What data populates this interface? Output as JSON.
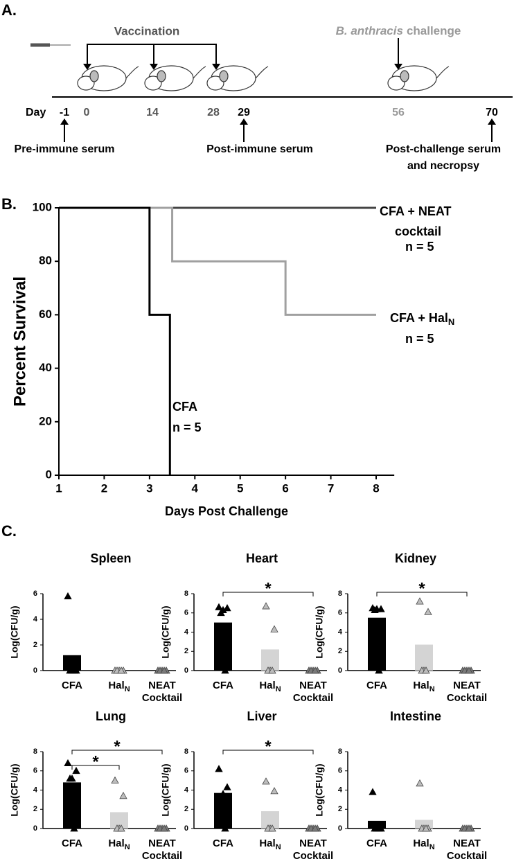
{
  "panel_labels": {
    "a": "A.",
    "b": "B.",
    "c": "C."
  },
  "timeline": {
    "vaccination": "Vaccination",
    "challenge_italic": "B. anthracis",
    "challenge": "challenge",
    "day_label": "Day",
    "days": [
      -1,
      0,
      14,
      28,
      29,
      56,
      70
    ],
    "annotations": [
      "Pre-immune serum",
      "Post-immune serum",
      "Post-challenge serum",
      "and necropsy"
    ]
  },
  "chart_data": [
    {
      "type": "step",
      "ylabel": "Percent Survival",
      "xlabel": "Days Post Challenge",
      "xlim": [
        1,
        8.4
      ],
      "ylim": [
        0,
        100
      ],
      "xticks": [
        1,
        2,
        3,
        4,
        5,
        6,
        7,
        8
      ],
      "yticks": [
        0,
        20,
        40,
        60,
        80,
        100
      ],
      "series": [
        {
          "name": "CFA + NEAT",
          "name_line2": "cocktail",
          "n_label": "n = 5",
          "color": "#444444",
          "x": [
            1,
            8
          ],
          "values": [
            100,
            100
          ]
        },
        {
          "name": "CFA + Hal",
          "name_sub": "N",
          "n_label": "n = 5",
          "color": "#a0a0a0",
          "x": [
            1,
            3.5,
            3.5,
            6,
            6,
            8
          ],
          "values": [
            100,
            100,
            80,
            80,
            60,
            60
          ]
        },
        {
          "name": "CFA",
          "n_label": "n = 5",
          "color": "#000000",
          "x": [
            1,
            3,
            3,
            3.45,
            3.45
          ],
          "values": [
            100,
            100,
            60,
            60,
            0
          ]
        }
      ]
    },
    {
      "type": "bar",
      "title": "Spleen",
      "ylabel": "Log(CFU/g)",
      "ylim": [
        0,
        6
      ],
      "yticks": [
        0,
        2,
        4,
        6
      ],
      "categories": [
        {
          "label": "CFA"
        },
        {
          "label": "Hal",
          "sub": "N"
        },
        {
          "label": "NEAT",
          "line2": "Cocktail"
        }
      ],
      "values": [
        1.2,
        0,
        0
      ],
      "points": [
        [
          5.8,
          0,
          0,
          0,
          0
        ],
        [
          0,
          0,
          0,
          0,
          0
        ],
        [
          0,
          0,
          0,
          0,
          0
        ]
      ],
      "bar_colors": [
        "#000000",
        "#d4d4d4",
        "#888888"
      ],
      "point_colors": [
        "#000000",
        "#bdbdbd",
        "#7a7a7a"
      ],
      "significance": []
    },
    {
      "type": "bar",
      "title": "Heart",
      "ylabel": "Log(CFU/g)",
      "ylim": [
        0,
        8
      ],
      "yticks": [
        0,
        2,
        4,
        6,
        8
      ],
      "categories": [
        {
          "label": "CFA"
        },
        {
          "label": "Hal",
          "sub": "N"
        },
        {
          "label": "NEAT",
          "line2": "Cocktail"
        }
      ],
      "values": [
        5.0,
        2.2,
        0
      ],
      "points": [
        [
          6.6,
          6.5,
          6.3,
          6.0,
          0
        ],
        [
          6.7,
          4.3,
          0,
          0,
          0
        ],
        [
          0,
          0,
          0,
          0,
          0
        ]
      ],
      "bar_colors": [
        "#000000",
        "#d4d4d4",
        "#888888"
      ],
      "point_colors": [
        "#000000",
        "#bdbdbd",
        "#7a7a7a"
      ],
      "significance": [
        {
          "from": 0,
          "to": 2,
          "label": "*"
        }
      ]
    },
    {
      "type": "bar",
      "title": "Kidney",
      "ylabel": "Log(CFU/g)",
      "ylim": [
        0,
        8
      ],
      "yticks": [
        0,
        2,
        4,
        6,
        8
      ],
      "categories": [
        {
          "label": "CFA"
        },
        {
          "label": "Hal",
          "sub": "N"
        },
        {
          "label": "NEAT",
          "line2": "Cocktail"
        }
      ],
      "values": [
        5.5,
        2.7,
        0
      ],
      "points": [
        [
          6.5,
          6.4,
          6.4,
          6.3,
          0
        ],
        [
          7.2,
          6.1,
          0,
          0,
          0
        ],
        [
          0,
          0,
          0,
          0,
          0
        ]
      ],
      "bar_colors": [
        "#000000",
        "#d4d4d4",
        "#888888"
      ],
      "point_colors": [
        "#000000",
        "#bdbdbd",
        "#7a7a7a"
      ],
      "significance": [
        {
          "from": 0,
          "to": 2,
          "label": "*"
        }
      ]
    },
    {
      "type": "bar",
      "title": "Lung",
      "ylabel": "Log(CFU/g)",
      "ylim": [
        0,
        8
      ],
      "yticks": [
        0,
        2,
        4,
        6,
        8
      ],
      "categories": [
        {
          "label": "CFA"
        },
        {
          "label": "Hal",
          "sub": "N"
        },
        {
          "label": "NEAT",
          "line2": "Cocktail"
        }
      ],
      "values": [
        4.8,
        1.7,
        0
      ],
      "points": [
        [
          6.8,
          6.0,
          5.2,
          5.2,
          0
        ],
        [
          5.0,
          3.4,
          0,
          0,
          0
        ],
        [
          0,
          0,
          0,
          0,
          0
        ]
      ],
      "bar_colors": [
        "#000000",
        "#d4d4d4",
        "#888888"
      ],
      "point_colors": [
        "#000000",
        "#bdbdbd",
        "#7a7a7a"
      ],
      "significance": [
        {
          "from": 0,
          "to": 1,
          "label": "*"
        },
        {
          "from": 0,
          "to": 2,
          "label": "*"
        }
      ]
    },
    {
      "type": "bar",
      "title": "Liver",
      "ylabel": "Log(CFU/g)",
      "ylim": [
        0,
        8
      ],
      "yticks": [
        0,
        2,
        4,
        6,
        8
      ],
      "categories": [
        {
          "label": "CFA"
        },
        {
          "label": "Hal",
          "sub": "N"
        },
        {
          "label": "NEAT",
          "line2": "Cocktail"
        }
      ],
      "values": [
        3.7,
        1.8,
        0
      ],
      "points": [
        [
          6.2,
          4.3,
          3.6,
          3.1,
          0
        ],
        [
          4.9,
          3.9,
          0,
          0,
          0
        ],
        [
          0,
          0,
          0,
          0,
          0
        ]
      ],
      "bar_colors": [
        "#000000",
        "#d4d4d4",
        "#888888"
      ],
      "point_colors": [
        "#000000",
        "#bdbdbd",
        "#7a7a7a"
      ],
      "significance": [
        {
          "from": 0,
          "to": 2,
          "label": "*"
        }
      ]
    },
    {
      "type": "bar",
      "title": "Intestine",
      "ylabel": "Log(CFU/g)",
      "ylim": [
        0,
        8
      ],
      "yticks": [
        0,
        2,
        4,
        6,
        8
      ],
      "categories": [
        {
          "label": "CFA"
        },
        {
          "label": "Hal",
          "sub": "N"
        },
        {
          "label": "NEAT",
          "line2": "Cocktail"
        }
      ],
      "values": [
        0.8,
        0.9,
        0
      ],
      "points": [
        [
          3.8,
          0,
          0,
          0,
          0
        ],
        [
          4.7,
          0,
          0,
          0,
          0
        ],
        [
          0,
          0,
          0,
          0,
          0
        ]
      ],
      "bar_colors": [
        "#000000",
        "#d4d4d4",
        "#888888"
      ],
      "point_colors": [
        "#000000",
        "#bdbdbd",
        "#7a7a7a"
      ],
      "significance": []
    }
  ]
}
